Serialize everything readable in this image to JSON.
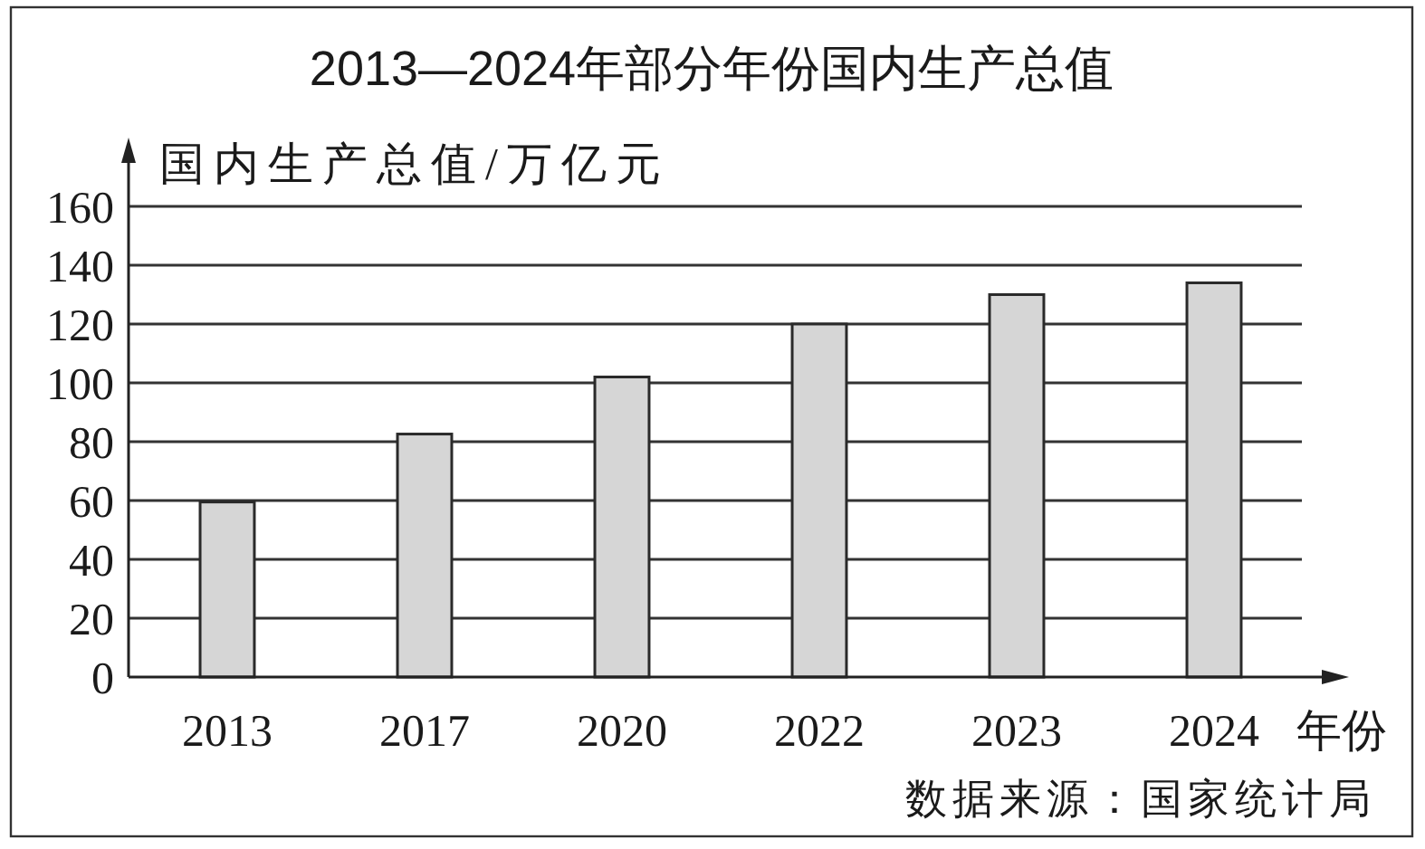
{
  "chart_data": {
    "type": "bar",
    "title": "2013—2024年部分年份国内生产总值",
    "ylabel": "国内生产总值/万亿元",
    "xlabel": "年份",
    "categories": [
      "2013",
      "2017",
      "2020",
      "2022",
      "2023",
      "2024"
    ],
    "values": [
      59.5,
      82.6,
      102,
      120,
      130,
      134
    ],
    "color": "#d6d6d6",
    "ylim": [
      0,
      160
    ],
    "yticks": [
      0,
      20,
      40,
      60,
      80,
      100,
      120,
      140,
      160
    ],
    "grid": "y",
    "annotations": [
      "数据来源：国家统计局"
    ]
  }
}
